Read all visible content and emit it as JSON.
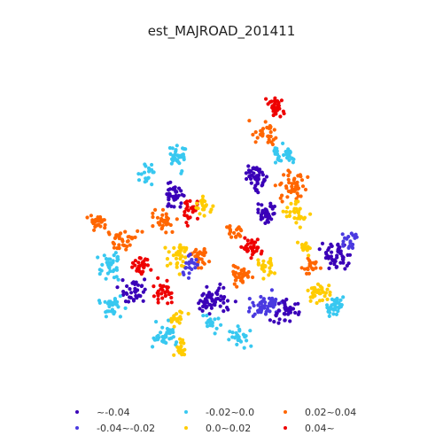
{
  "title": "est_MAJROAD_201411",
  "legend": [
    {
      "label": "~-0.04",
      "color": "#3a00b8"
    },
    {
      "label": "-0.04~-0.02",
      "color": "#4a3ae0"
    },
    {
      "label": "-0.02~0.0",
      "color": "#38c8f0"
    },
    {
      "label": "0.0~0.02",
      "color": "#ffcc00"
    },
    {
      "label": "0.02~0.04",
      "color": "#ff6600"
    },
    {
      "label": "0.04~",
      "color": "#ee0000"
    }
  ]
}
